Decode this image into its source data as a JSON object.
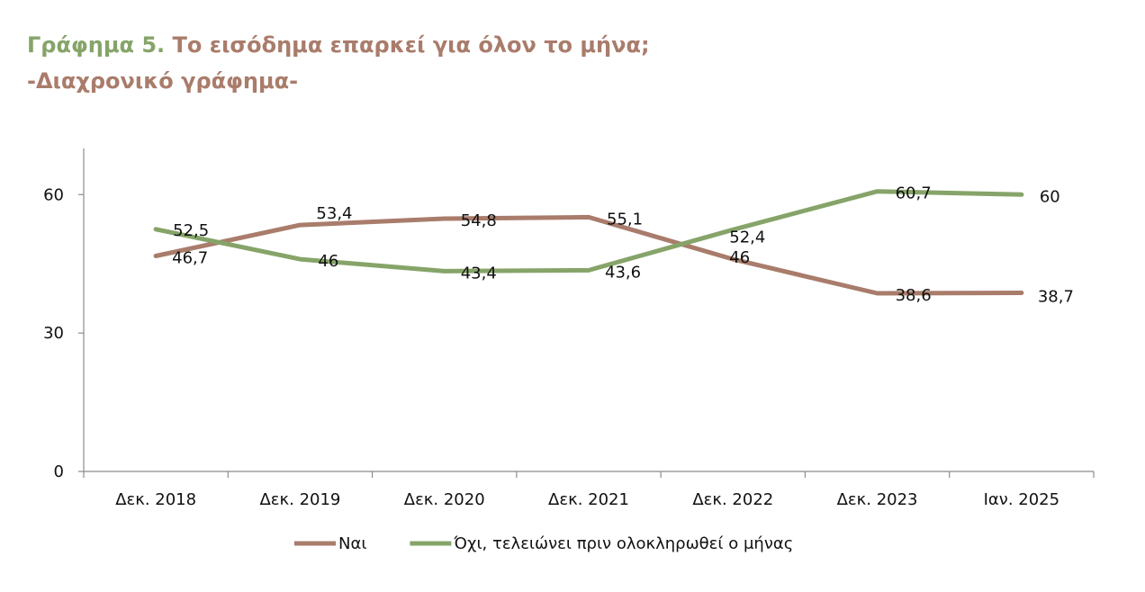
{
  "header": {
    "title_part1": "Γράφημα 5.",
    "title_part2": "Το εισόδημα επαρκεί για όλον το μήνα;",
    "subtitle": "-Διαχρονικό γράφημα-"
  },
  "chart_data": {
    "type": "line",
    "categories": [
      "Δεκ. 2018",
      "Δεκ. 2019",
      "Δεκ. 2020",
      "Δεκ. 2021",
      "Δεκ. 2022",
      "Δεκ. 2023",
      "Ιαν. 2025"
    ],
    "series": [
      {
        "name": "Ναι",
        "color": "#a97c6b",
        "values": [
          46.7,
          53.4,
          54.8,
          55.1,
          46,
          38.6,
          38.7
        ],
        "labels": [
          "46,7",
          "53,4",
          "54,8",
          "55,1",
          "46",
          "38,6",
          "38,7"
        ]
      },
      {
        "name": "Όχι, τελειώνει πριν ολοκληρωθεί  ο μήνας",
        "color": "#86a469",
        "values": [
          52.5,
          46,
          43.4,
          43.6,
          52.4,
          60.7,
          60
        ],
        "labels": [
          "52,5",
          "46",
          "43,4",
          "43,6",
          "52,4",
          "60,7",
          "60"
        ]
      }
    ],
    "y_ticks": [
      0,
      30,
      60
    ],
    "y_tick_labels": [
      "0",
      "30",
      "60"
    ],
    "ylim": [
      0,
      70
    ],
    "grid": false,
    "legend_position": "bottom"
  }
}
